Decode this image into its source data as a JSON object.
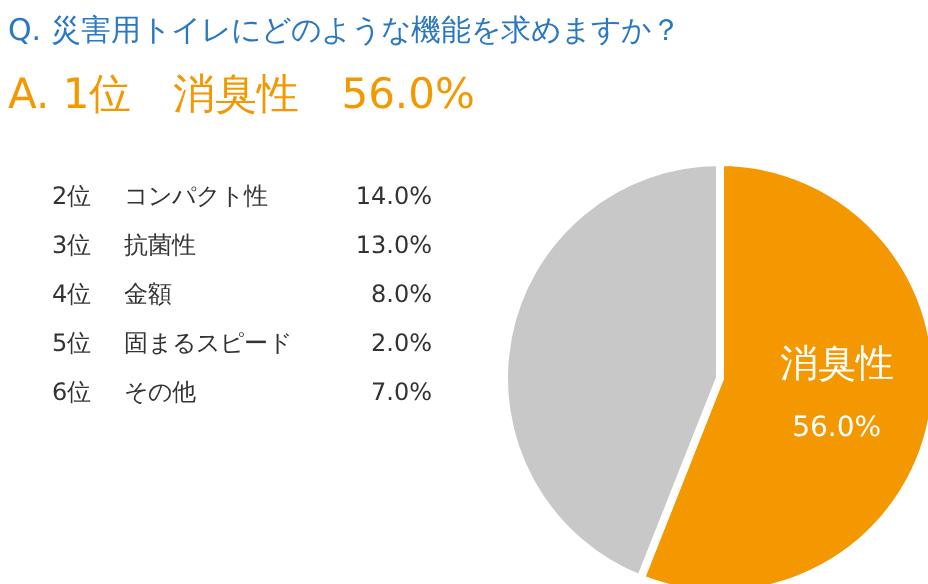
{
  "chart_data": {
    "type": "pie",
    "title": "Q. 災害用トイレにどのような機能を求めますか？",
    "subtitle": "A. 1位　消臭性　56.0%",
    "categories": [
      "消臭性",
      null
    ],
    "values": [
      56,
      44
    ],
    "colors": [
      "#f39800",
      "#c8c8c8"
    ],
    "value_labels": [
      "56.0%",
      null
    ],
    "annotations": [
      "2位",
      "コンパクト性",
      "14.0%",
      "3位",
      "抗菌性",
      "13.0%",
      "4位",
      "金額",
      "8.0%",
      "5位",
      "固まるスピード",
      "2.0%",
      "6位",
      "その他",
      "7.0%"
    ]
  }
}
